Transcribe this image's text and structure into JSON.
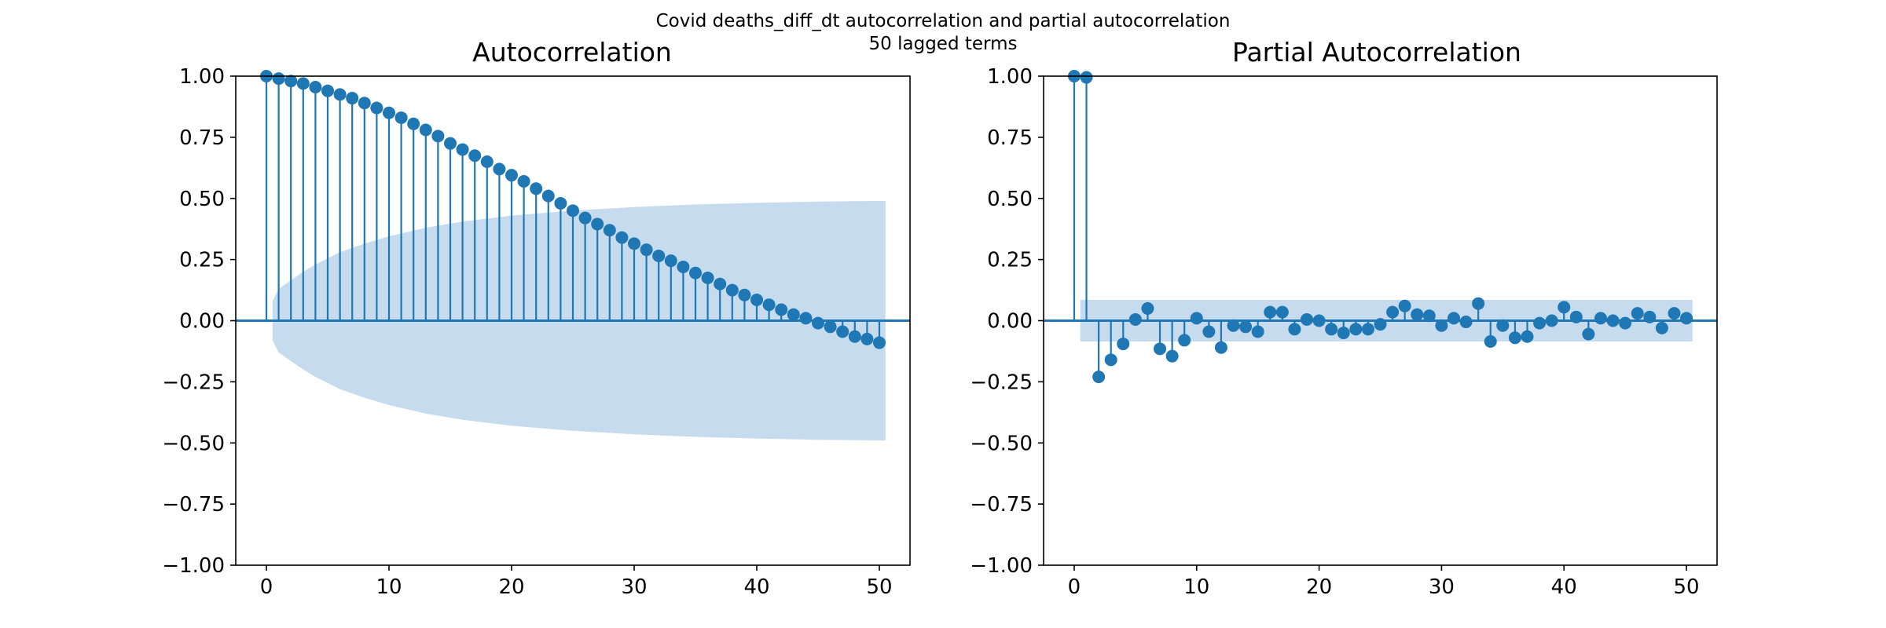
{
  "figure": {
    "suptitle_line1": "Covid deaths_diff_dt autocorrelation and partial autocorrelation",
    "suptitle_line2": "50 lagged terms"
  },
  "colors": {
    "stem": "#1f77b4",
    "band": "#c6dbed",
    "axis": "#000000"
  },
  "chart_data": [
    {
      "type": "stem",
      "title": "Autocorrelation",
      "xlabel": "",
      "ylabel": "",
      "xlim": [
        -2.5,
        52.5
      ],
      "ylim": [
        -1.0,
        1.0
      ],
      "xticks": [
        0,
        10,
        20,
        30,
        40,
        50
      ],
      "yticks": [
        -1.0,
        -0.75,
        -0.5,
        -0.25,
        0.0,
        0.25,
        0.5,
        0.75,
        1.0
      ],
      "ytick_labels": [
        "−1.00",
        "−0.75",
        "−0.50",
        "−0.25",
        "0.00",
        "0.25",
        "0.50",
        "0.75",
        "1.00"
      ],
      "xtick_labels": [
        "0",
        "10",
        "20",
        "30",
        "40",
        "50"
      ],
      "grid": false,
      "lags": [
        0,
        1,
        2,
        3,
        4,
        5,
        6,
        7,
        8,
        9,
        10,
        11,
        12,
        13,
        14,
        15,
        16,
        17,
        18,
        19,
        20,
        21,
        22,
        23,
        24,
        25,
        26,
        27,
        28,
        29,
        30,
        31,
        32,
        33,
        34,
        35,
        36,
        37,
        38,
        39,
        40,
        41,
        42,
        43,
        44,
        45,
        46,
        47,
        48,
        49,
        50
      ],
      "values": [
        1.0,
        0.99,
        0.98,
        0.97,
        0.955,
        0.94,
        0.925,
        0.91,
        0.89,
        0.87,
        0.85,
        0.83,
        0.805,
        0.78,
        0.755,
        0.725,
        0.7,
        0.675,
        0.65,
        0.62,
        0.595,
        0.57,
        0.54,
        0.51,
        0.48,
        0.45,
        0.42,
        0.395,
        0.37,
        0.34,
        0.315,
        0.29,
        0.265,
        0.245,
        0.22,
        0.195,
        0.175,
        0.15,
        0.125,
        0.105,
        0.085,
        0.065,
        0.045,
        0.025,
        0.01,
        -0.01,
        -0.025,
        -0.045,
        -0.065,
        -0.075,
        -0.09
      ],
      "confidence_band": {
        "x": [
          0.5,
          1,
          2,
          3,
          4,
          5,
          6,
          8,
          10,
          13,
          16,
          20,
          25,
          30,
          35,
          40,
          45,
          50.5
        ],
        "upper": [
          0.08,
          0.13,
          0.165,
          0.2,
          0.23,
          0.255,
          0.28,
          0.315,
          0.345,
          0.38,
          0.405,
          0.43,
          0.45,
          0.465,
          0.475,
          0.482,
          0.487,
          0.49
        ],
        "lower": [
          -0.08,
          -0.13,
          -0.165,
          -0.2,
          -0.23,
          -0.255,
          -0.28,
          -0.315,
          -0.345,
          -0.38,
          -0.405,
          -0.43,
          -0.45,
          -0.465,
          -0.475,
          -0.482,
          -0.487,
          -0.49
        ]
      }
    },
    {
      "type": "stem",
      "title": "Partial Autocorrelation",
      "xlabel": "",
      "ylabel": "",
      "xlim": [
        -2.5,
        52.5
      ],
      "ylim": [
        -1.0,
        1.0
      ],
      "xticks": [
        0,
        10,
        20,
        30,
        40,
        50
      ],
      "yticks": [
        -1.0,
        -0.75,
        -0.5,
        -0.25,
        0.0,
        0.25,
        0.5,
        0.75,
        1.0
      ],
      "ytick_labels": [
        "−1.00",
        "−0.75",
        "−0.50",
        "−0.25",
        "0.00",
        "0.25",
        "0.50",
        "0.75",
        "1.00"
      ],
      "xtick_labels": [
        "0",
        "10",
        "20",
        "30",
        "40",
        "50"
      ],
      "grid": false,
      "lags": [
        0,
        1,
        2,
        3,
        4,
        5,
        6,
        7,
        8,
        9,
        10,
        11,
        12,
        13,
        14,
        15,
        16,
        17,
        18,
        19,
        20,
        21,
        22,
        23,
        24,
        25,
        26,
        27,
        28,
        29,
        30,
        31,
        32,
        33,
        34,
        35,
        36,
        37,
        38,
        39,
        40,
        41,
        42,
        43,
        44,
        45,
        46,
        47,
        48,
        49,
        50
      ],
      "values": [
        1.0,
        0.995,
        -0.23,
        -0.16,
        -0.095,
        0.005,
        0.05,
        -0.115,
        -0.145,
        -0.08,
        0.01,
        -0.045,
        -0.11,
        -0.02,
        -0.025,
        -0.045,
        0.035,
        0.035,
        -0.035,
        0.005,
        0.0,
        -0.035,
        -0.05,
        -0.035,
        -0.035,
        -0.015,
        0.035,
        0.06,
        0.025,
        0.02,
        -0.02,
        0.01,
        -0.005,
        0.07,
        -0.085,
        -0.02,
        -0.07,
        -0.065,
        -0.01,
        0.0,
        0.055,
        0.015,
        -0.055,
        0.01,
        0.0,
        -0.01,
        0.03,
        0.015,
        -0.03,
        0.03,
        0.01
      ],
      "confidence_band": {
        "x": [
          0.5,
          50.5
        ],
        "upper": [
          0.085,
          0.085
        ],
        "lower": [
          -0.085,
          -0.085
        ]
      }
    }
  ]
}
